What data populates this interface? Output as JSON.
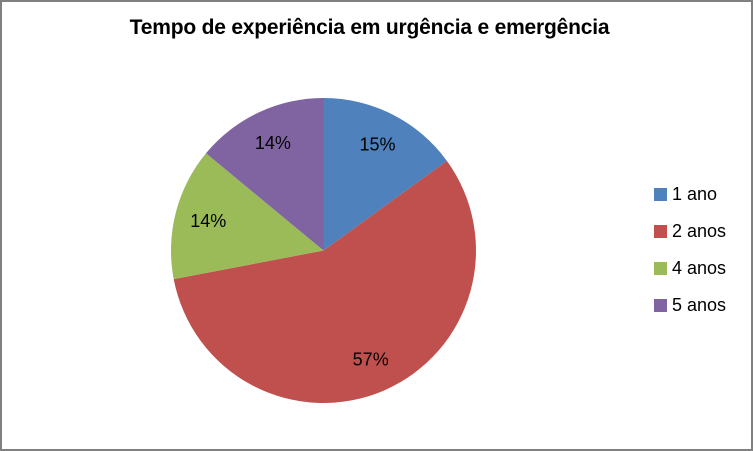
{
  "window": {
    "background": "#FFFFFF",
    "border_color": "#808080"
  },
  "chart_data": {
    "type": "pie",
    "title": "Tempo de experiência em urgência e emergência",
    "categories": [
      "1 ano",
      "2 anos",
      "4 anos",
      "5 anos"
    ],
    "values": [
      15,
      57,
      14,
      14
    ],
    "data_labels": [
      "15%",
      "57%",
      "14%",
      "14%"
    ],
    "colors": [
      "#4F81BD",
      "#C0504D",
      "#9BBB59",
      "#8064A2"
    ],
    "label_color": "#000000",
    "title_color": "#000000",
    "start_angle_deg": 0,
    "direction": "clockwise",
    "legend_position": "right",
    "grid": false
  }
}
